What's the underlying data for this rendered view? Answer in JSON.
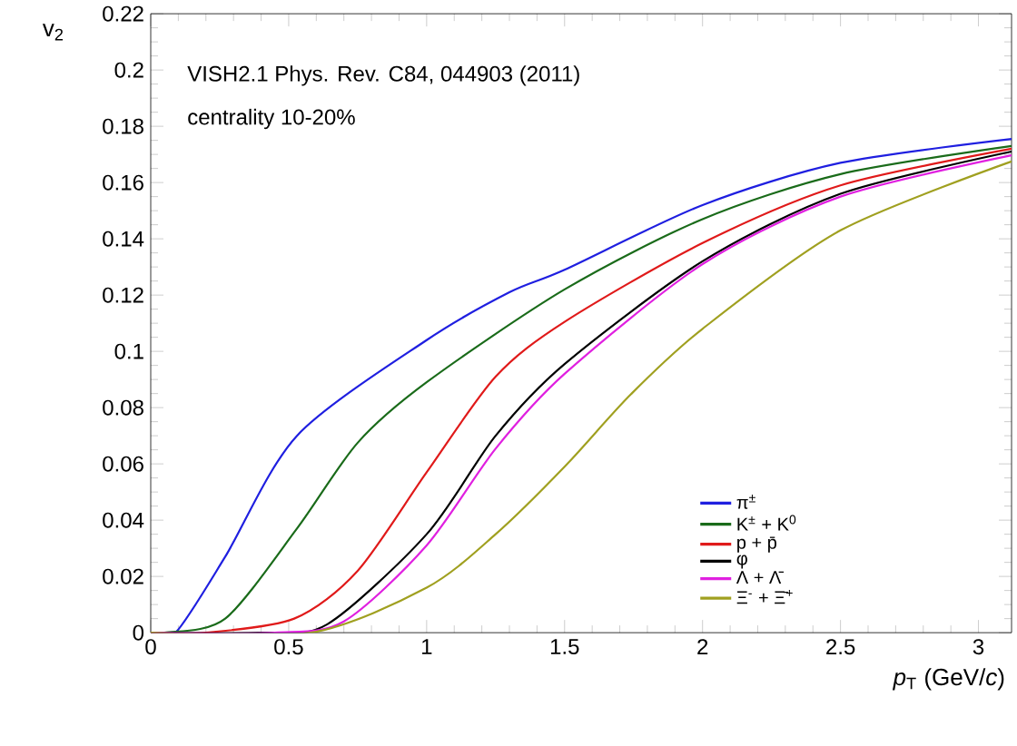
{
  "chart_data": {
    "type": "line",
    "xlabel": "*p*$_{T}$ (GeV/*c*)",
    "ylabel": "v$_{2}$",
    "annotations": [
      "VISH2.1 Phys. Rev. C84, 044903 (2011)",
      "centrality 10-20%"
    ],
    "xlim": [
      0,
      3.12
    ],
    "ylim": [
      0,
      0.22
    ],
    "xticks": [
      0,
      0.5,
      1,
      1.5,
      2,
      2.5,
      3
    ],
    "yticks": [
      0,
      0.02,
      0.04,
      0.06,
      0.08,
      0.1,
      0.12,
      0.14,
      0.16,
      0.18,
      0.2,
      0.22
    ],
    "legend": "bottom right",
    "grid": false,
    "marker": "none",
    "line_style": "solid",
    "series": [
      {
        "name": "π$^{±}$",
        "color": "#1f1fe0",
        "x": [
          0,
          0.09,
          0.27,
          0.53,
          1,
          1.3,
          1.5,
          2,
          2.5,
          3.12
        ],
        "values": [
          0,
          0,
          0.027,
          0.07,
          0.104,
          0.121,
          0.129,
          0.152,
          0.167,
          0.1755
        ]
      },
      {
        "name": "K$^{±}$ + K$^{0}$",
        "color": "#1a6b1a",
        "x": [
          0,
          0.05,
          0.27,
          0.53,
          0.75,
          1,
          1.5,
          2,
          2.5,
          3.12
        ],
        "values": [
          0,
          0,
          0.005,
          0.037,
          0.0675,
          0.089,
          0.122,
          0.147,
          0.163,
          0.173
        ]
      },
      {
        "name": "p + p̄",
        "color": "#e01a1a",
        "x": [
          0,
          0.2,
          0.52,
          0.75,
          1,
          1.25,
          1.5,
          2,
          2.5,
          3.12
        ],
        "values": [
          0,
          0,
          0.005,
          0.022,
          0.057,
          0.091,
          0.1105,
          0.1385,
          0.159,
          0.172
        ]
      },
      {
        "name": "φ",
        "color": "#000000",
        "x": [
          0,
          0.4,
          0.64,
          1,
          1.25,
          1.5,
          2,
          2.5,
          3.12
        ],
        "values": [
          0,
          0,
          0.003,
          0.035,
          0.07,
          0.0955,
          0.132,
          0.156,
          0.171
        ]
      },
      {
        "name": "Λ + Λ̄",
        "color": "#e020e0",
        "x": [
          0,
          0.45,
          0.7,
          1,
          1.25,
          1.5,
          2,
          2.5,
          3.12
        ],
        "values": [
          0,
          0,
          0.004,
          0.031,
          0.0654,
          0.092,
          0.131,
          0.155,
          0.1697
        ]
      },
      {
        "name": "Ξ$^{-}$ + Ξ̄$^{+}$",
        "color": "#a0a020",
        "x": [
          0,
          0.58,
          1,
          1.25,
          1.5,
          1.74,
          2,
          2.5,
          3.12
        ],
        "values": [
          0,
          0,
          0.016,
          0.035,
          0.059,
          0.0847,
          0.108,
          0.143,
          0.1675
        ]
      }
    ]
  }
}
